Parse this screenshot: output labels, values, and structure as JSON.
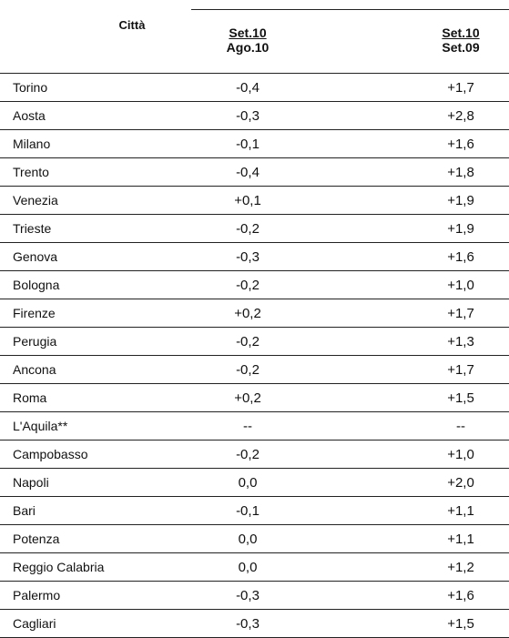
{
  "header": {
    "city_label": "Città",
    "col1": {
      "top": "Set.10",
      "bottom": "Ago.10"
    },
    "col2": {
      "top": "Set.10",
      "bottom": "Set.09"
    }
  },
  "rows": [
    {
      "city": "Torino",
      "v1": "-0,4",
      "v2": "+1,7"
    },
    {
      "city": "Aosta",
      "v1": "-0,3",
      "v2": "+2,8"
    },
    {
      "city": "Milano",
      "v1": "-0,1",
      "v2": "+1,6"
    },
    {
      "city": "Trento",
      "v1": "-0,4",
      "v2": "+1,8"
    },
    {
      "city": "Venezia",
      "v1": "+0,1",
      "v2": "+1,9"
    },
    {
      "city": "Trieste",
      "v1": "-0,2",
      "v2": "+1,9"
    },
    {
      "city": "Genova",
      "v1": "-0,3",
      "v2": "+1,6"
    },
    {
      "city": "Bologna",
      "v1": "-0,2",
      "v2": "+1,0"
    },
    {
      "city": "Firenze",
      "v1": "+0,2",
      "v2": "+1,7"
    },
    {
      "city": "Perugia",
      "v1": "-0,2",
      "v2": "+1,3"
    },
    {
      "city": "Ancona",
      "v1": "-0,2",
      "v2": "+1,7"
    },
    {
      "city": "Roma",
      "v1": "+0,2",
      "v2": "+1,5"
    },
    {
      "city": "L'Aquila**",
      "v1": "--",
      "v2": "--"
    },
    {
      "city": "Campobasso",
      "v1": "-0,2",
      "v2": "+1,0"
    },
    {
      "city": "Napoli",
      "v1": "0,0",
      "v2": "+2,0"
    },
    {
      "city": "Bari",
      "v1": "-0,1",
      "v2": "+1,1"
    },
    {
      "city": "Potenza",
      "v1": "0,0",
      "v2": "+1,1"
    },
    {
      "city": "Reggio Calabria",
      "v1": "0,0",
      "v2": "+1,2"
    },
    {
      "city": "Palermo",
      "v1": "-0,3",
      "v2": "+1,6"
    },
    {
      "city": "Cagliari",
      "v1": "-0,3",
      "v2": "+1,5"
    }
  ]
}
